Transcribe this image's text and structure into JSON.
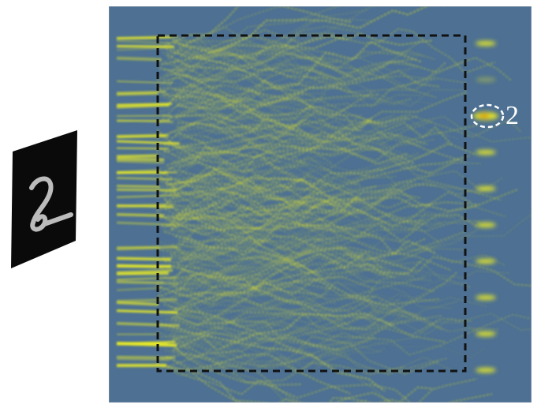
{
  "input": {
    "digit_shown": "2",
    "icon": "handwritten-digit-image"
  },
  "field": {
    "background_color": "#4d7093",
    "intensity_color": "#f2f21e",
    "peak_color": "#e08a00",
    "detector_count": 10,
    "target_detector_index": 2
  },
  "annotation": {
    "target_label": "2"
  }
}
